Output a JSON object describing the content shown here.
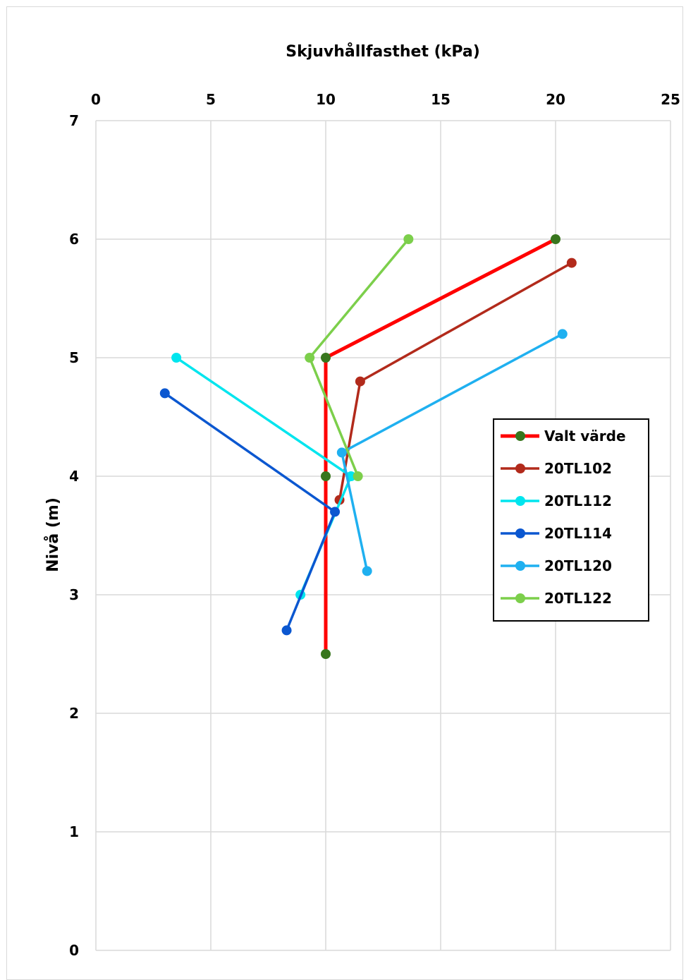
{
  "chart_data": {
    "type": "line",
    "title": "",
    "xlabel": "Skjuvhållfasthet (kPa)",
    "ylabel": "Nivå (m)",
    "x_axis_position": "top",
    "xlim": [
      0,
      25
    ],
    "ylim": [
      0,
      7
    ],
    "xticks": [
      "0",
      "5",
      "10",
      "15",
      "20",
      "25"
    ],
    "yticks": [
      "0",
      "1",
      "2",
      "3",
      "4",
      "5",
      "6",
      "7"
    ],
    "grid": true,
    "legend_position": "right",
    "series": [
      {
        "name": "Valt värde",
        "color": "#ff0000",
        "marker_color": "#38761d",
        "line_width": 5,
        "points": [
          [
            20,
            6
          ],
          [
            10,
            5
          ],
          [
            10,
            4
          ],
          [
            10,
            2.5
          ]
        ]
      },
      {
        "name": "20TL102",
        "color": "#b22a1b",
        "marker_color": "#b22a1b",
        "line_width": 3.5,
        "points": [
          [
            20.7,
            5.8
          ],
          [
            11.5,
            4.8
          ],
          [
            10.6,
            3.8
          ]
        ]
      },
      {
        "name": "20TL112",
        "color": "#00e5ee",
        "marker_color": "#00e5ee",
        "line_width": 3.5,
        "points": [
          [
            3.5,
            5
          ],
          [
            11.1,
            4
          ],
          [
            8.9,
            3
          ]
        ]
      },
      {
        "name": "20TL114",
        "color": "#0b57d0",
        "marker_color": "#0b57d0",
        "line_width": 3.5,
        "points": [
          [
            3,
            4.7
          ],
          [
            10.4,
            3.7
          ],
          [
            8.3,
            2.7
          ]
        ]
      },
      {
        "name": "20TL120",
        "color": "#1fb0f0",
        "marker_color": "#1fb0f0",
        "line_width": 3.5,
        "points": [
          [
            20.3,
            5.2
          ],
          [
            10.7,
            4.2
          ],
          [
            11.8,
            3.2
          ]
        ]
      },
      {
        "name": "20TL122",
        "color": "#7ccf4b",
        "marker_color": "#7ccf4b",
        "line_width": 3.5,
        "points": [
          [
            13.6,
            6
          ],
          [
            9.3,
            5
          ],
          [
            11.4,
            4
          ]
        ]
      }
    ]
  }
}
